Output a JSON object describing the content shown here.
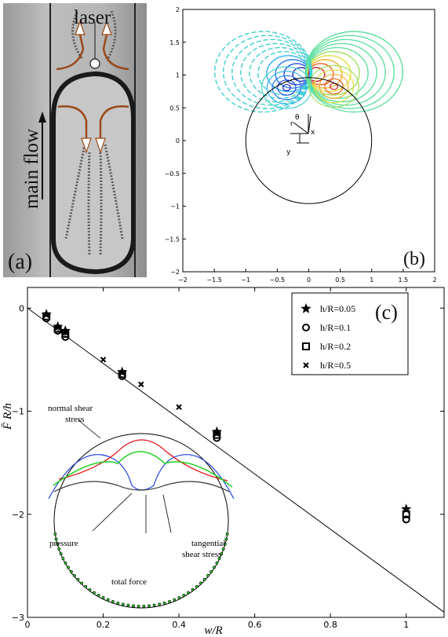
{
  "panel_a": {
    "label": "(a)",
    "laser_label": "laser",
    "flow_label": "main flow"
  },
  "panel_b": {
    "label": "(b)",
    "coord_labels": {
      "r": "r",
      "theta": "θ",
      "x": "x",
      "y": "y"
    }
  },
  "panel_c": {
    "label": "(c)",
    "annotations": {
      "normal": "normal shear",
      "normal2": "stress",
      "pressure": "pressure",
      "tangential": "tangential",
      "tangential2": "shear stress",
      "total": "total force"
    }
  },
  "chart_data": [
    {
      "type": "contour",
      "panel": "(b)",
      "xlim": [
        -2,
        2
      ],
      "ylim": [
        -2,
        2
      ],
      "xticks": [
        "−2",
        "−1.5",
        "−1",
        "−0.5",
        "0",
        "0.5",
        "1",
        "1.5",
        "2"
      ],
      "yticks": [
        "2",
        "1.5",
        "1",
        "0.5",
        "0",
        "−0.5",
        "−1",
        "−1.5",
        "−2"
      ],
      "circle": {
        "cx": 0,
        "cy": 0,
        "r": 1
      },
      "levels": 10
    },
    {
      "type": "scatter",
      "panel": "(c)",
      "xlabel": "w/R",
      "ylabel": "F̄ R/h",
      "xlim": [
        0,
        1.1
      ],
      "ylim": [
        -3,
        0.2
      ],
      "xticks": [
        "0",
        "0.2",
        "0.4",
        "0.6",
        "0.8",
        "1"
      ],
      "yticks": [
        "0",
        "−1",
        "−2",
        "−3"
      ],
      "legend_position": "top-right",
      "series": [
        {
          "name": "h/R=0.05",
          "marker": "star",
          "x": [
            0.05,
            0.08,
            0.1,
            0.25,
            0.5,
            1.0
          ],
          "y": [
            -0.06,
            -0.18,
            -0.22,
            -0.62,
            -1.2,
            -1.95
          ]
        },
        {
          "name": "h/R=0.1",
          "marker": "circle",
          "x": [
            0.05,
            0.08,
            0.1,
            0.25,
            0.5,
            1.0
          ],
          "y": [
            -0.1,
            -0.22,
            -0.28,
            -0.66,
            -1.26,
            -2.05
          ]
        },
        {
          "name": "h/R=0.2",
          "marker": "square",
          "x": [
            0.05,
            0.08,
            0.1,
            0.25,
            0.5,
            1.0
          ],
          "y": [
            -0.08,
            -0.2,
            -0.25,
            -0.64,
            -1.23,
            -2.0
          ]
        },
        {
          "name": "h/R=0.5",
          "marker": "x",
          "x": [
            0.2,
            0.3,
            0.4
          ],
          "y": [
            -0.5,
            -0.74,
            -0.96
          ]
        }
      ],
      "fit_line": {
        "x": [
          0,
          1.1
        ],
        "y": [
          0,
          -2.95
        ]
      }
    }
  ]
}
